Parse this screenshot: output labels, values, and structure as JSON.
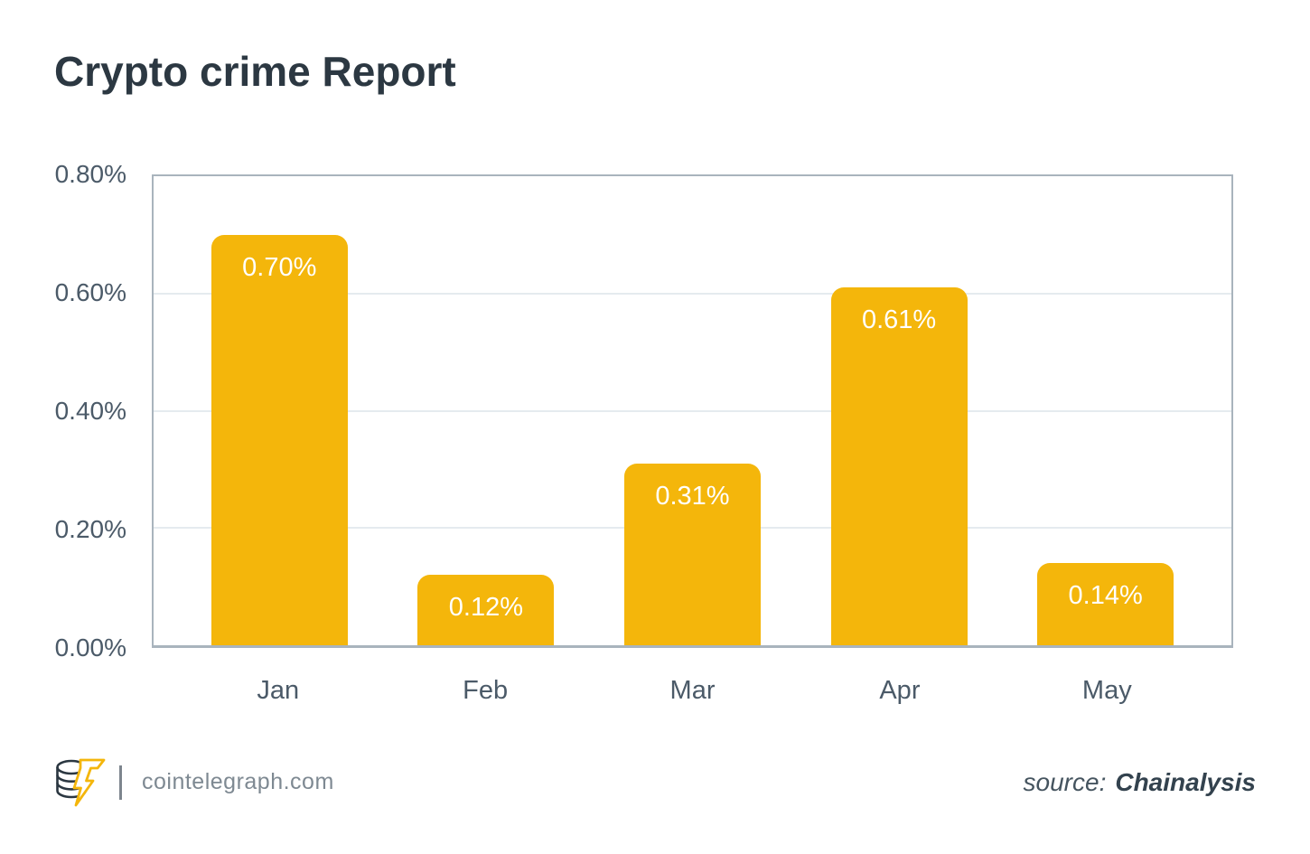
{
  "title": "Crypto crime Report",
  "chart_data": {
    "type": "bar",
    "categories": [
      "Jan",
      "Feb",
      "Mar",
      "Apr",
      "May"
    ],
    "values": [
      0.7,
      0.12,
      0.31,
      0.61,
      0.14
    ],
    "value_labels": [
      "0.70%",
      "0.12%",
      "0.31%",
      "0.61%",
      "0.14%"
    ],
    "title": "Crypto crime Report",
    "xlabel": "",
    "ylabel": "",
    "ylim": [
      0,
      0.8
    ],
    "yticks": [
      "0.80%",
      "0.60%",
      "0.40%",
      "0.20%",
      "0.00%"
    ],
    "grid": true,
    "legend": "none",
    "bar_color": "#F4B60B"
  },
  "footer": {
    "brand": "cointelegraph.com",
    "source_prefix": "source:",
    "source_name": "Chainalysis"
  },
  "colors": {
    "bar": "#F4B60B",
    "title_text": "#2c3842",
    "axis_text": "#4b5a68",
    "plot_border": "#a9b4bd",
    "gridline": "#e5ebef",
    "footer_text": "#7e8992"
  }
}
